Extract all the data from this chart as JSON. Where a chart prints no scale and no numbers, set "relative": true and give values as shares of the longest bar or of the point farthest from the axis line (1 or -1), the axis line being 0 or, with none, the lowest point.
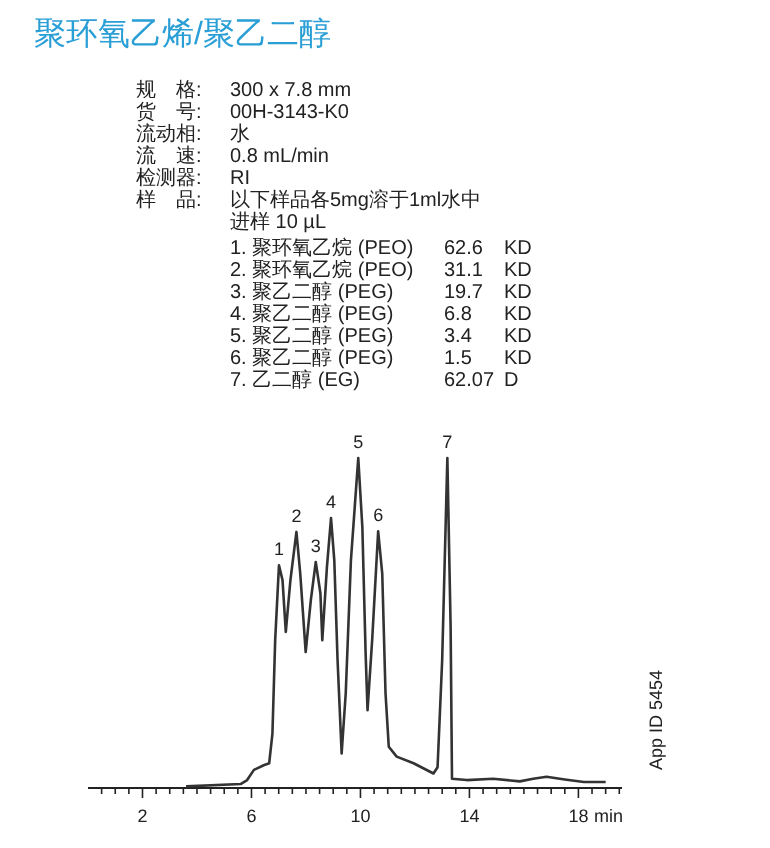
{
  "chart_data": {
    "type": "line",
    "title": "聚环氧乙烯/聚乙二醇",
    "xlabel": "min",
    "relative": true,
    "line_style": "solid",
    "xlim": [
      0,
      19.6
    ],
    "xticks": [
      {
        "value": 0.5,
        "label": null
      },
      {
        "value": 1,
        "label": null
      },
      {
        "value": 1.5,
        "label": null
      },
      2,
      {
        "value": 2.5,
        "label": null
      },
      {
        "value": 3,
        "label": null
      },
      {
        "value": 3.5,
        "label": null
      },
      {
        "value": 4,
        "label": null
      },
      {
        "value": 4.5,
        "label": null
      },
      {
        "value": 5,
        "label": null
      },
      {
        "value": 5.5,
        "label": null
      },
      6,
      {
        "value": 6.5,
        "label": null
      },
      {
        "value": 7,
        "label": null
      },
      {
        "value": 7.5,
        "label": null
      },
      {
        "value": 8,
        "label": null
      },
      {
        "value": 8.5,
        "label": null
      },
      {
        "value": 9,
        "label": null
      },
      {
        "value": 9.5,
        "label": null
      },
      10,
      {
        "value": 10.5,
        "label": null
      },
      {
        "value": 11,
        "label": null
      },
      {
        "value": 11.5,
        "label": null
      },
      {
        "value": 12,
        "label": null
      },
      {
        "value": 12.5,
        "label": null
      },
      {
        "value": 13,
        "label": null
      },
      {
        "value": 13.5,
        "label": null
      },
      14,
      {
        "value": 14.5,
        "label": null
      },
      {
        "value": 15,
        "label": null
      },
      {
        "value": 15.5,
        "label": null
      },
      {
        "value": 16,
        "label": null
      },
      {
        "value": 16.5,
        "label": null
      },
      {
        "value": 17,
        "label": null
      },
      {
        "value": 17.5,
        "label": null
      },
      18,
      {
        "value": 18.5,
        "label": null
      },
      {
        "value": 19,
        "label": null
      },
      {
        "value": 19.5,
        "label": null
      }
    ],
    "series": [
      {
        "color": "#333333",
        "x": [
          3.6,
          5.6,
          5.84,
          6.09,
          6.45,
          6.65,
          6.77,
          6.87,
          7.01,
          7.14,
          7.26,
          7.43,
          7.65,
          7.79,
          7.99,
          8.18,
          8.36,
          8.53,
          8.6,
          8.77,
          8.92,
          9.04,
          9.16,
          9.31,
          9.46,
          9.65,
          9.92,
          10.07,
          10.19,
          10.26,
          10.43,
          10.65,
          10.8,
          10.92,
          11.04,
          11.33,
          11.95,
          12.68,
          12.83,
          13.0,
          13.19,
          13.31,
          13.36,
          13.9,
          14.87,
          15.85,
          16.34,
          16.83,
          17.5,
          18.2,
          19.0
        ],
        "values": [
          0.005,
          0.012,
          0.024,
          0.055,
          0.069,
          0.075,
          0.165,
          0.448,
          0.675,
          0.63,
          0.473,
          0.63,
          0.776,
          0.65,
          0.412,
          0.57,
          0.685,
          0.59,
          0.448,
          0.67,
          0.818,
          0.69,
          0.388,
          0.105,
          0.287,
          0.69,
          1.0,
          0.79,
          0.408,
          0.236,
          0.448,
          0.778,
          0.65,
          0.287,
          0.125,
          0.095,
          0.075,
          0.044,
          0.063,
          0.388,
          1.0,
          0.489,
          0.028,
          0.024,
          0.028,
          0.02,
          0.028,
          0.034,
          0.026,
          0.018,
          0.018
        ]
      }
    ],
    "annotations": [
      "规　格:",
      "300 x 7.8 mm",
      "货　号:",
      "00H-3143-K0",
      "流动相:",
      "水",
      "流　速:",
      "0.8 mL/min",
      "检测器:",
      "RI",
      "样　品:",
      "以下样品各5mg溶于1ml水中",
      "进样 10 µL",
      "1. 聚环氧乙烷 (PEO)",
      "62.6",
      "KD",
      "2. 聚环氧乙烷 (PEO)",
      "31.1",
      "KD",
      "3. 聚乙二醇 (PEG)",
      "19.7",
      "KD",
      "4. 聚乙二醇 (PEG)",
      "6.8",
      "KD",
      "5. 聚乙二醇 (PEG)",
      "3.4",
      "KD",
      "6. 聚乙二醇 (PEG)",
      "1.5",
      "KD",
      "7. 乙二醇 (EG)",
      "62.07",
      "D",
      "App ID 5454",
      {
        "text": "1",
        "x": 7.01,
        "y": 0.675
      },
      {
        "text": "2",
        "x": 7.65,
        "y": 0.776
      },
      {
        "text": "3",
        "x": 8.36,
        "y": 0.685
      },
      {
        "text": "4",
        "x": 8.92,
        "y": 0.818
      },
      {
        "text": "5",
        "x": 9.92,
        "y": 1.0
      },
      {
        "text": "6",
        "x": 10.65,
        "y": 0.778
      },
      {
        "text": "7",
        "x": 13.19,
        "y": 1.0
      }
    ]
  }
}
